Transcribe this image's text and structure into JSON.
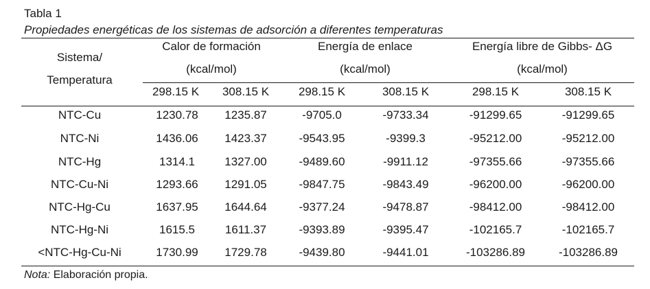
{
  "caption": {
    "label": "Tabla 1",
    "title": "Propiedades energéticas de los sistemas de adsorción a diferentes temperaturas"
  },
  "table": {
    "stub_header_line1": "Sistema/",
    "stub_header_line2": "Temperatura",
    "groups": [
      {
        "title": "Calor de formación",
        "unit": "(kcal/mol)"
      },
      {
        "title": "Energía de enlace",
        "unit": "(kcal/mol)"
      },
      {
        "title": "Energía libre de Gibbs- ΔG",
        "unit": "(kcal/mol)"
      }
    ],
    "subheaders": [
      "298.15 K",
      "308.15 K",
      "298.15 K",
      "308.15 K",
      "298.15 K",
      "308.15 K"
    ],
    "rows": [
      {
        "system": "NTC-Cu",
        "values": [
          "1230.78",
          "1235.87",
          "-9705.0",
          "-9733.34",
          "-91299.65",
          "-91299.65"
        ]
      },
      {
        "system": "NTC-Ni",
        "values": [
          "1436.06",
          "1423.37",
          "-9543.95",
          "-9399.3",
          "-95212.00",
          "-95212.00"
        ]
      },
      {
        "system": "NTC-Hg",
        "values": [
          "1314.1",
          "1327.00",
          "-9489.60",
          "-9911.12",
          "-97355.66",
          "-97355.66"
        ]
      },
      {
        "system": "NTC-Cu-Ni",
        "values": [
          "1293.66",
          "1291.05",
          "-9847.75",
          "-9843.49",
          "-96200.00",
          "-96200.00"
        ]
      },
      {
        "system": "NTC-Hg-Cu",
        "values": [
          "1637.95",
          "1644.64",
          "-9377.24",
          "-9478.87",
          "-98412.00",
          "-98412.00"
        ]
      },
      {
        "system": "NTC-Hg-Ni",
        "values": [
          "1615.5",
          "1611.37",
          "-9393.89",
          "-9395.47",
          "-102165.7",
          "-102165.7"
        ]
      },
      {
        "system": "<NTC-Hg-Cu-Ni",
        "values": [
          "1730.99",
          "1729.78",
          "-9439.80",
          "-9441.01",
          "-103286.89",
          "-103286.89"
        ]
      }
    ]
  },
  "note": {
    "label": "Nota:",
    "text": " Elaboración propia."
  }
}
